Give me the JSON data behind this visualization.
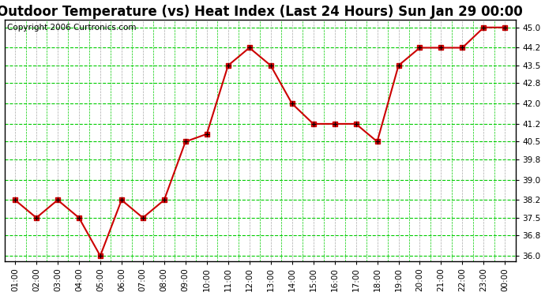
{
  "title": "Outdoor Temperature (vs) Heat Index (Last 24 Hours) Sun Jan 29 00:00",
  "copyright": "Copyright 2006 Curtronics.com",
  "x_labels": [
    "01:00",
    "02:00",
    "03:00",
    "04:00",
    "05:00",
    "06:00",
    "07:00",
    "08:00",
    "09:00",
    "10:00",
    "11:00",
    "12:00",
    "13:00",
    "14:00",
    "15:00",
    "16:00",
    "17:00",
    "18:00",
    "19:00",
    "20:00",
    "21:00",
    "22:00",
    "23:00",
    "00:00"
  ],
  "y_values": [
    38.2,
    37.5,
    38.2,
    37.5,
    36.0,
    38.2,
    37.5,
    38.2,
    40.5,
    40.8,
    43.5,
    44.2,
    43.5,
    42.0,
    41.2,
    41.2,
    41.2,
    40.5,
    43.5,
    44.2,
    44.2,
    44.2,
    45.0,
    45.0
  ],
  "ylim": [
    35.8,
    45.3
  ],
  "yticks": [
    36.0,
    36.8,
    37.5,
    38.2,
    39.0,
    39.8,
    40.5,
    41.2,
    42.0,
    42.8,
    43.5,
    44.2,
    45.0
  ],
  "line_color": "#cc0000",
  "marker_color": "#cc0000",
  "marker_inner_color": "#000000",
  "bg_color": "#ffffff",
  "grid_color_green": "#00cc00",
  "grid_color_gray": "#aaaaaa",
  "title_fontsize": 12,
  "copyright_fontsize": 7.5,
  "tick_fontsize": 7.5,
  "fig_bg": "#ffffff"
}
